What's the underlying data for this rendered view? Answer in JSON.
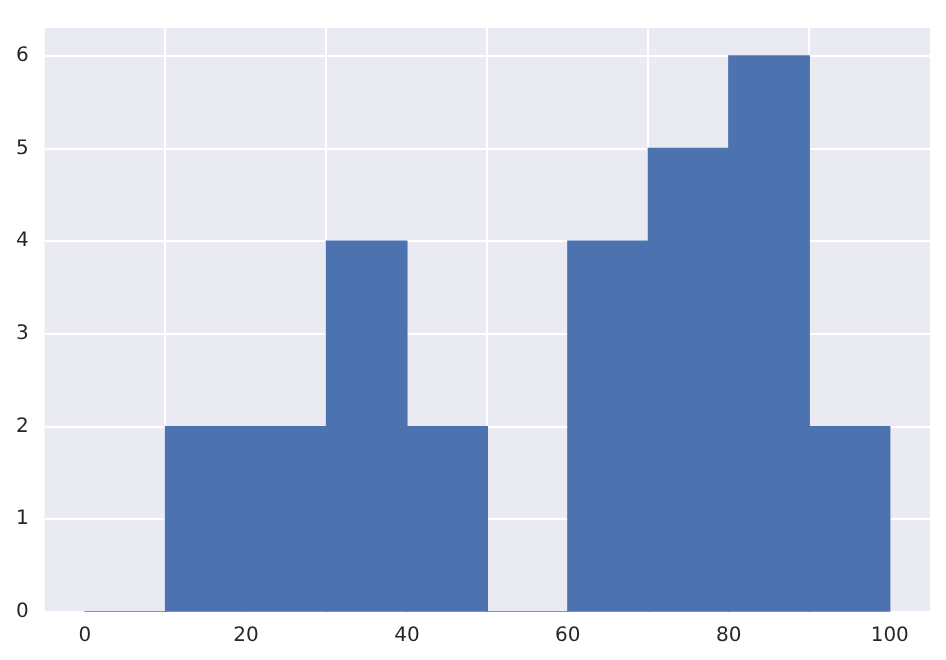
{
  "chart_data": {
    "type": "histogram",
    "bins": [
      0,
      10,
      20,
      30,
      40,
      50,
      60,
      70,
      80,
      90,
      100
    ],
    "values": [
      0,
      2,
      2,
      4,
      2,
      0,
      4,
      5,
      6,
      2
    ],
    "color": "#4c72b0",
    "xlim": [
      -5,
      105
    ],
    "xticks": [
      0,
      20,
      40,
      60,
      80,
      100
    ],
    "ylim": [
      0,
      6.3
    ],
    "yticks": [
      0,
      1,
      2,
      3,
      4,
      5,
      6
    ],
    "grid": true,
    "legend": false
  }
}
